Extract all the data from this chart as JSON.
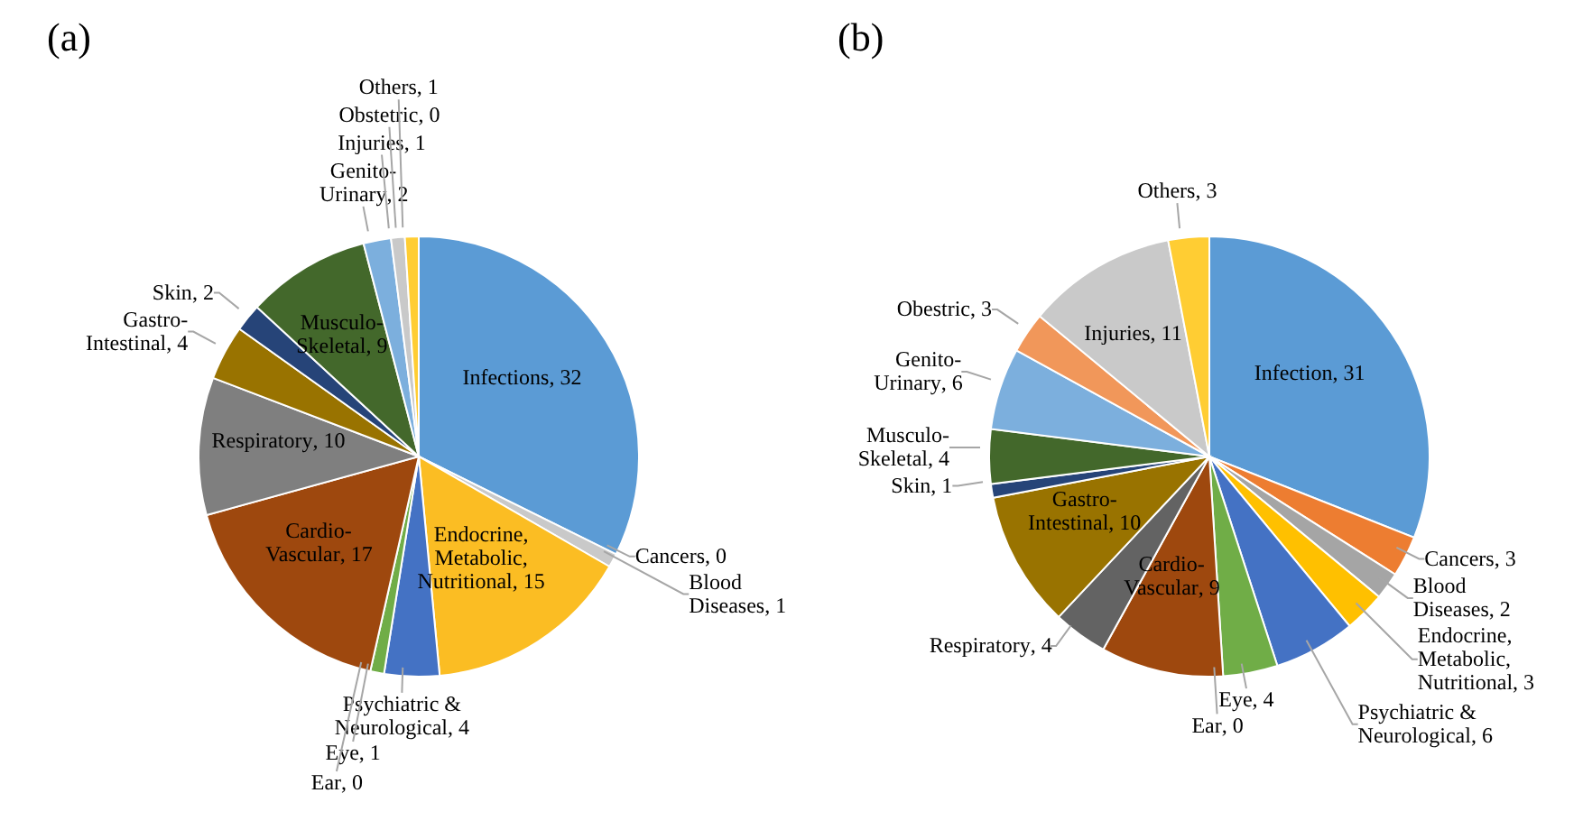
{
  "chart_data": [
    {
      "type": "pie",
      "title": "(a)",
      "categories": [
        "Infections",
        "Cancers",
        "Blood Diseases",
        "Endocrine, Metabolic, Nutritional",
        "Psychiatric & Neurological",
        "Eye",
        "Ear",
        "Cardio-Vascular",
        "Respiratory",
        "Gastro-Intestinal",
        "Skin",
        "Musculo-Skeletal",
        "Genito-Urinary",
        "Injuries",
        "Obstetric",
        "Others"
      ],
      "values": [
        32,
        0,
        1,
        15,
        4,
        1,
        0,
        17,
        10,
        4,
        2,
        9,
        2,
        1,
        0,
        1
      ],
      "value_labels": [
        ", 32",
        ", 0",
        ", 1",
        ", 15",
        ", 4",
        ", 1",
        ", 0",
        ", 17",
        ", 10",
        ", 4",
        ", 2",
        ", 9",
        ", 2",
        ", 1",
        ", 0",
        ", 1"
      ],
      "colors": [
        "#5b9bd5",
        "#a5a5a5",
        "#c9c9c9",
        "#fbbd23",
        "#4472c4",
        "#70ad47",
        "#8fb2da",
        "#9e480e",
        "#7f7f7f",
        "#997300",
        "#264478",
        "#43682b",
        "#7cafdd",
        "#c9c9c9",
        "#f1975a",
        "#ffcd33"
      ]
    },
    {
      "type": "pie",
      "title": "(b)",
      "categories": [
        "Infection",
        "Cancers",
        "Blood Diseases",
        "Endocrine, Metabolic, Nutritional",
        "Psychiatric & Neurological",
        "Eye",
        "Ear",
        "Cardio-Vascular",
        "Respiratory",
        "Gastro-Intestinal",
        "Skin",
        "Musculo-Skeletal",
        "Genito-Urinary",
        "Obestric",
        "Injuries",
        "Others"
      ],
      "values": [
        31,
        3,
        2,
        3,
        6,
        4,
        0,
        9,
        4,
        10,
        1,
        4,
        6,
        3,
        11,
        3
      ],
      "value_labels": [
        ", 31",
        ", 3",
        ", 2",
        ", 3",
        ", 6",
        ", 4",
        ", 0",
        ", 9",
        ", 4",
        ", 10",
        ", 1",
        ", 4",
        ", 6",
        ", 3",
        ", 11",
        ", 3"
      ],
      "colors": [
        "#5b9bd5",
        "#ed7d31",
        "#a5a5a5",
        "#ffc000",
        "#4472c4",
        "#70ad47",
        "#8fb2da",
        "#9e480e",
        "#636363",
        "#997300",
        "#264478",
        "#43682b",
        "#7cafdd",
        "#f1975a",
        "#c9c9c9",
        "#ffcd33"
      ]
    }
  ]
}
